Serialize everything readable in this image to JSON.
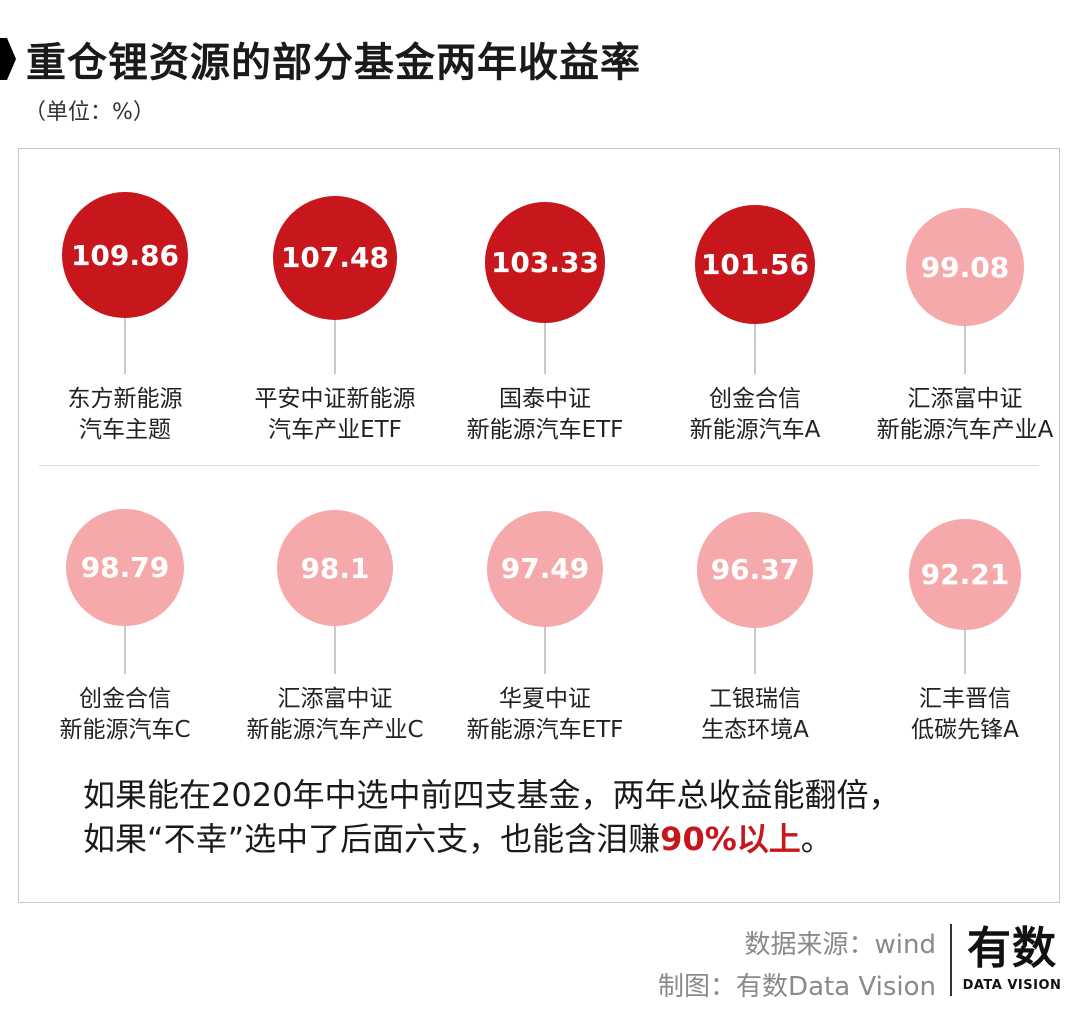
{
  "title": "重仓锂资源的部分基金两年收益率",
  "unit": "（单位：%）",
  "colors": {
    "high": "#c8161d",
    "low": "#f5a9ab",
    "highlight": "#c8161d"
  },
  "chart_data": {
    "type": "bubble-list",
    "unit": "%",
    "threshold_high": 100,
    "funds": [
      {
        "name_line1": "东方新能源",
        "name_line2": "汽车主题",
        "value": 109.86
      },
      {
        "name_line1": "平安中证新能源",
        "name_line2": "汽车产业ETF",
        "value": 107.48
      },
      {
        "name_line1": "国泰中证",
        "name_line2": "新能源汽车ETF",
        "value": 103.33
      },
      {
        "name_line1": "创金合信",
        "name_line2": "新能源汽车A",
        "value": 101.56
      },
      {
        "name_line1": "汇添富中证",
        "name_line2": "新能源汽车产业A",
        "value": 99.08
      },
      {
        "name_line1": "创金合信",
        "name_line2": "新能源汽车C",
        "value": 98.79
      },
      {
        "name_line1": "汇添富中证",
        "name_line2": "新能源汽车产业C",
        "value": 98.1
      },
      {
        "name_line1": "华夏中证",
        "name_line2": "新能源汽车ETF",
        "value": 97.49
      },
      {
        "name_line1": "工银瑞信",
        "name_line2": "生态环境A",
        "value": 96.37
      },
      {
        "name_line1": "汇丰晋信",
        "name_line2": "低碳先锋A",
        "value": 92.21
      }
    ]
  },
  "note": {
    "line1": "如果能在2020年中选中前四支基金，两年总收益能翻倍，",
    "line2_pre": "如果“不幸”选中了后面六支，也能含泪赚",
    "line2_highlight": "90%以上",
    "line2_post": "。"
  },
  "footer": {
    "source": "数据来源：wind",
    "credit": "制图：有数Data Vision",
    "logo_cn": "有数",
    "logo_en": "DATA VISION"
  }
}
